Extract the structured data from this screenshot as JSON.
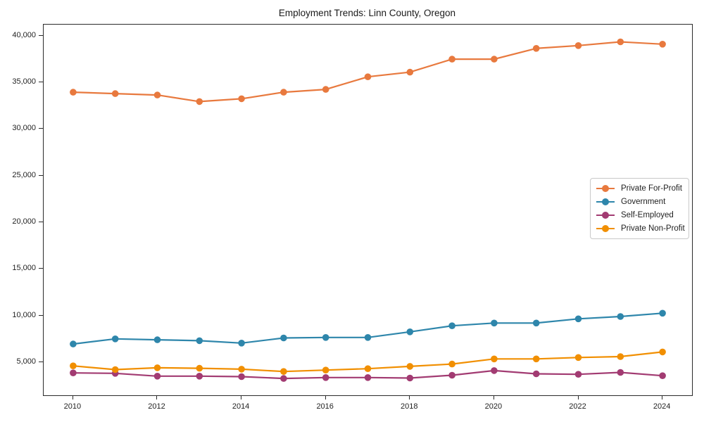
{
  "title": "Employment Trends: Linn County, Oregon",
  "chart_data": {
    "type": "line",
    "title": "Employment Trends: Linn County, Oregon",
    "xlabel": "",
    "ylabel": "",
    "grid": false,
    "legend_position": "center right",
    "xlim": [
      2009.3,
      2024.7
    ],
    "ylim": [
      1450,
      41200
    ],
    "x": [
      2010,
      2011,
      2012,
      2013,
      2014,
      2015,
      2016,
      2017,
      2018,
      2019,
      2020,
      2021,
      2022,
      2023,
      2024
    ],
    "series": [
      {
        "name": "Private For-Profit",
        "color": "#E8793E",
        "values": [
          33950,
          33800,
          33650,
          32950,
          33250,
          33950,
          34250,
          35600,
          36100,
          37500,
          37500,
          38650,
          38950,
          39350,
          39100
        ]
      },
      {
        "name": "Government",
        "color": "#2E86AB",
        "values": [
          6950,
          7500,
          7400,
          7300,
          7050,
          7600,
          7650,
          7650,
          8250,
          8900,
          9200,
          9200,
          9650,
          9900,
          10250
        ]
      },
      {
        "name": "Self-Employed",
        "color": "#A23B72",
        "values": [
          3850,
          3800,
          3500,
          3500,
          3450,
          3250,
          3350,
          3350,
          3300,
          3600,
          4100,
          3750,
          3700,
          3900,
          3550
        ]
      },
      {
        "name": "Private Non-Profit",
        "color": "#F18F01",
        "values": [
          4600,
          4200,
          4400,
          4350,
          4250,
          4000,
          4150,
          4300,
          4550,
          4800,
          5350,
          5350,
          5500,
          5600,
          6100
        ]
      }
    ],
    "yticks": {
      "values": [
        5000,
        10000,
        15000,
        20000,
        25000,
        30000,
        35000,
        40000
      ],
      "labels": [
        "5,000",
        "10,000",
        "15,000",
        "20,000",
        "25,000",
        "30,000",
        "35,000",
        "40,000"
      ]
    },
    "xticks": {
      "values": [
        2010,
        2012,
        2014,
        2016,
        2018,
        2020,
        2022,
        2024
      ],
      "labels": [
        "2010",
        "2012",
        "2014",
        "2016",
        "2018",
        "2020",
        "2022",
        "2024"
      ]
    }
  }
}
